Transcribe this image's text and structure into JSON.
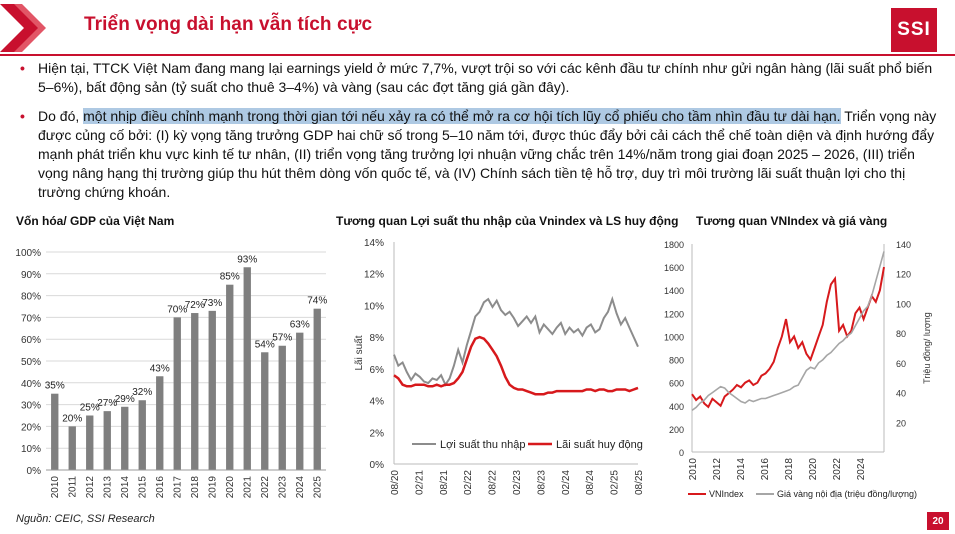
{
  "header": {
    "title": "Triển vọng dài hạn vẫn tích cực",
    "logo_text": "SSI",
    "accent_color": "#c8102e"
  },
  "bullets": [
    {
      "text": "Hiện tại, TTCK Việt Nam đang mang lại earnings yield ở mức 7,7%, vượt trội so với các kênh đầu tư chính như  gửi ngân hàng (lãi suất phổ biến 5–6%), bất động sản (tỷ suất cho thuê 3–4%) và vàng (sau các đợt tăng giá gần đây)."
    },
    {
      "prefix": "Do đó, ",
      "highlight": "một nhịp điều chỉnh mạnh trong thời gian tới nếu xảy ra có thể mở ra cơ hội tích lũy cổ phiếu cho tầm nhìn đầu tư dài hạn.",
      "rest": " Triển vọng này được củng cố bởi: (I) kỳ vọng tăng trưởng GDP hai chữ số trong 5–10 năm tới, được thúc đẩy bởi cải cách thể chế toàn diện và định hướng đẩy mạnh phát triển khu vực kinh tế tư nhân, (II) triển vọng tăng trưởng lợi nhuận vững chắc trên 14%/năm trong giai đoạn 2025 – 2026, (III) triển vọng nâng hạng thị trường giúp thu hút thêm dòng vốn quốc tế, và (IV) Chính sách tiền tệ hỗ trợ, duy trì môi trường lãi suất thuận lợi cho thị trường chứng khoán."
    }
  ],
  "chart_data": [
    {
      "type": "bar",
      "title": "Vốn hóa/ GDP của Việt Nam",
      "categories": [
        "2010",
        "2011",
        "2012",
        "2013",
        "2014",
        "2015",
        "2016",
        "2017",
        "2018",
        "2019",
        "2020",
        "2021",
        "2022",
        "2023",
        "2024",
        "2025"
      ],
      "values": [
        35,
        20,
        25,
        27,
        29,
        32,
        43,
        70,
        72,
        73,
        85,
        93,
        54,
        57,
        63,
        74
      ],
      "labels": [
        "35%",
        "20%",
        "25%",
        "27%",
        "29%",
        "32%",
        "43%",
        "70%",
        "72%",
        "73%",
        "85%",
        "93%",
        "54%",
        "57%",
        "63%",
        "74%"
      ],
      "yticks": [
        "0%",
        "10%",
        "20%",
        "30%",
        "40%",
        "50%",
        "60%",
        "70%",
        "80%",
        "90%",
        "100%"
      ],
      "ylim": [
        0,
        100
      ],
      "bar_color": "#7f7f7f",
      "grid": true
    },
    {
      "type": "line",
      "title": "Tương quan Lợi suất thu nhập của Vnindex và LS huy động",
      "ylabel": "Lãi suất",
      "ylim": [
        0,
        14
      ],
      "yticks": [
        "0%",
        "2%",
        "4%",
        "6%",
        "8%",
        "10%",
        "12%",
        "14%"
      ],
      "xticks": [
        "08/20",
        "02/21",
        "08/21",
        "02/22",
        "08/22",
        "02/23",
        "08/23",
        "02/24",
        "08/24",
        "02/25",
        "08/25"
      ],
      "legend_position": "bottom",
      "series": [
        {
          "name": "Lợi suất thu nhập",
          "color": "#8c8c8c",
          "values": [
            6.9,
            6.2,
            6.4,
            5.8,
            5.3,
            5.7,
            5.5,
            5.2,
            5.1,
            5.4,
            5.3,
            5.6,
            5.0,
            5.4,
            6.2,
            7.2,
            6.4,
            7.5,
            8.4,
            9.3,
            9.6,
            10.2,
            10.4,
            9.9,
            10.3,
            9.7,
            9.4,
            9.6,
            9.2,
            8.7,
            9.0,
            9.3,
            8.9,
            9.3,
            8.3,
            8.8,
            8.5,
            8.2,
            8.6,
            8.9,
            8.2,
            8.6,
            8.3,
            8.5,
            8.1,
            8.6,
            8.8,
            8.3,
            8.5,
            9.2,
            9.6,
            10.4,
            9.5,
            8.8,
            9.2,
            8.6,
            8.0,
            7.4
          ]
        },
        {
          "name": "Lãi suất huy động",
          "color": "#d7191c",
          "values": [
            5.6,
            5.4,
            5.0,
            4.9,
            4.9,
            5.0,
            5.0,
            5.0,
            4.9,
            4.9,
            5.0,
            4.9,
            5.0,
            5.0,
            5.1,
            5.4,
            5.8,
            6.6,
            7.4,
            7.9,
            8.0,
            7.9,
            7.6,
            7.2,
            6.8,
            6.2,
            5.5,
            5.0,
            4.8,
            4.7,
            4.7,
            4.6,
            4.5,
            4.4,
            4.4,
            4.4,
            4.5,
            4.5,
            4.6,
            4.6,
            4.6,
            4.6,
            4.6,
            4.6,
            4.6,
            4.7,
            4.7,
            4.6,
            4.7,
            4.7,
            4.6,
            4.6,
            4.7,
            4.7,
            4.7,
            4.6,
            4.7,
            4.8
          ]
        }
      ]
    },
    {
      "type": "line",
      "title": "Tương quan VNIndex và giá vàng",
      "y2label": "Triệu đồng/ lượng",
      "ylim": [
        0,
        1800
      ],
      "yticks": [
        "0",
        "200",
        "400",
        "600",
        "800",
        "1000",
        "1200",
        "1400",
        "1600",
        "1800"
      ],
      "y2lim": [
        0,
        140
      ],
      "y2ticks": [
        "20",
        "40",
        "60",
        "80",
        "100",
        "120",
        "140"
      ],
      "xticks": [
        "2010",
        "2012",
        "2014",
        "2016",
        "2018",
        "2020",
        "2022",
        "2024"
      ],
      "legend_position": "bottom",
      "series": [
        {
          "name": "VNIndex",
          "axis": "left",
          "color": "#d7191c",
          "values": [
            500,
            450,
            480,
            420,
            390,
            460,
            430,
            400,
            480,
            510,
            540,
            580,
            560,
            600,
            620,
            580,
            600,
            660,
            680,
            720,
            780,
            900,
            1000,
            1150,
            950,
            1000,
            900,
            950,
            850,
            800,
            900,
            1000,
            1100,
            1300,
            1450,
            1500,
            1050,
            1100,
            1000,
            1050,
            1200,
            1250,
            1150,
            1250,
            1350,
            1300,
            1400,
            1600
          ]
        },
        {
          "name": "Giá vàng nội địa (triệu đồng/lượng)",
          "axis": "right",
          "color": "#a6a6a6",
          "values": [
            28,
            30,
            33,
            35,
            38,
            40,
            42,
            44,
            43,
            40,
            38,
            36,
            34,
            33,
            35,
            34,
            35,
            36,
            36,
            37,
            38,
            39,
            40,
            41,
            42,
            44,
            45,
            50,
            55,
            57,
            56,
            60,
            62,
            65,
            67,
            70,
            73,
            75,
            78,
            80,
            85,
            90,
            95,
            98,
            105,
            115,
            125,
            135
          ]
        }
      ]
    }
  ],
  "footer": {
    "source": "Nguồn: CEIC, SSI Research",
    "page_number": "20"
  }
}
